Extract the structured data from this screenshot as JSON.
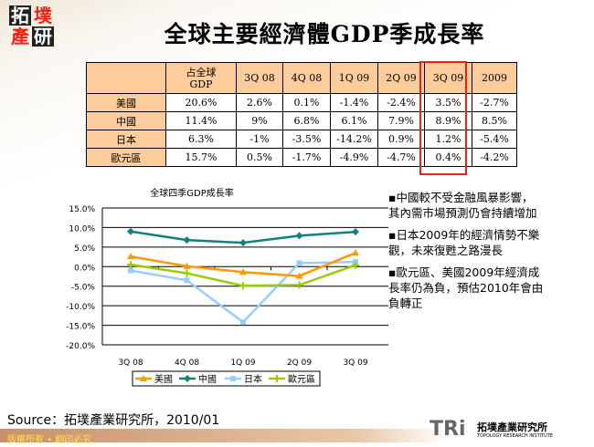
{
  "logo": {
    "chars": [
      "拓",
      "墣",
      "產",
      "研"
    ]
  },
  "title": "全球主要經濟體GDP季成長率",
  "table": {
    "headers": [
      "",
      "占全球\nGDP",
      "3Q 08",
      "4Q 08",
      "1Q 09",
      "2Q 09",
      "3Q 09",
      "2009"
    ],
    "header_lines": [
      [
        "",
        ""
      ],
      [
        "占全球",
        "GDP"
      ],
      [
        "3Q 08"
      ],
      [
        "4Q 08"
      ],
      [
        "1Q 09"
      ],
      [
        "2Q 09"
      ],
      [
        "3Q 09"
      ],
      [
        "2009"
      ]
    ],
    "rows": [
      [
        "美國",
        "20.6%",
        "2.6%",
        "0.1%",
        "-1.4%",
        "-2.4%",
        "3.5%",
        "-2.7%"
      ],
      [
        "中國",
        "11.4%",
        "9%",
        "6.8%",
        "6.1%",
        "7.9%",
        "8.9%",
        "8.5%"
      ],
      [
        "日本",
        "6.3%",
        "-1%",
        "-3.5%",
        "-14.2%",
        "0.9%",
        "1.2%",
        "-5.4%"
      ],
      [
        "歐元區",
        "15.7%",
        "0.5%",
        "-1.7%",
        "-4.9%",
        "-4.7%",
        "0.4%",
        "-4.2%"
      ]
    ],
    "highlight_column": "3Q 09",
    "highlight_color": "#ee2211"
  },
  "chart_data": {
    "type": "line",
    "title": "全球四季GDP成長率",
    "categories": [
      "3Q 08",
      "4Q 08",
      "1Q 09",
      "2Q 09",
      "3Q 09"
    ],
    "ylim": [
      -20,
      15
    ],
    "yticks": [
      "15.0%",
      "10.0%",
      "5.0%",
      "0.0%",
      "-5.0%",
      "-10.0%",
      "-15.0%",
      "-20.0%"
    ],
    "grid": true,
    "legend_placement": "bottom",
    "series": [
      {
        "name": "美國",
        "values": [
          2.6,
          0.1,
          -1.4,
          -2.4,
          3.5
        ],
        "color": "#ff9900",
        "marker": "triangle"
      },
      {
        "name": "中國",
        "values": [
          9,
          6.8,
          6.1,
          7.9,
          8.9
        ],
        "color": "#138080",
        "marker": "diamond"
      },
      {
        "name": "日本",
        "values": [
          -1,
          -3.5,
          -14.2,
          0.9,
          1.2
        ],
        "color": "#99ccff",
        "marker": "square"
      },
      {
        "name": "歐元區",
        "values": [
          0.5,
          -1.7,
          -4.9,
          -4.7,
          0.4
        ],
        "color": "#99cc00",
        "marker": "cross"
      }
    ]
  },
  "notes": [
    "▪中國較不受金融風暴影響，其內需市場預測仍會持續增加",
    "▪日本2009年的經濟情勢不樂觀，未來復甦之路漫長",
    "▪歐元區、美國2009年經濟成長率仍為負，預估2010年會由負轉正"
  ],
  "source": "Source：拓墣產業研究所，2010/01",
  "footer": "版權所有 • 翻印必究",
  "brand": {
    "mark": "TRi",
    "name": "拓墣產業研究所",
    "subtitle": "TOPOLOGY RESEARCH INSTITUTE"
  }
}
